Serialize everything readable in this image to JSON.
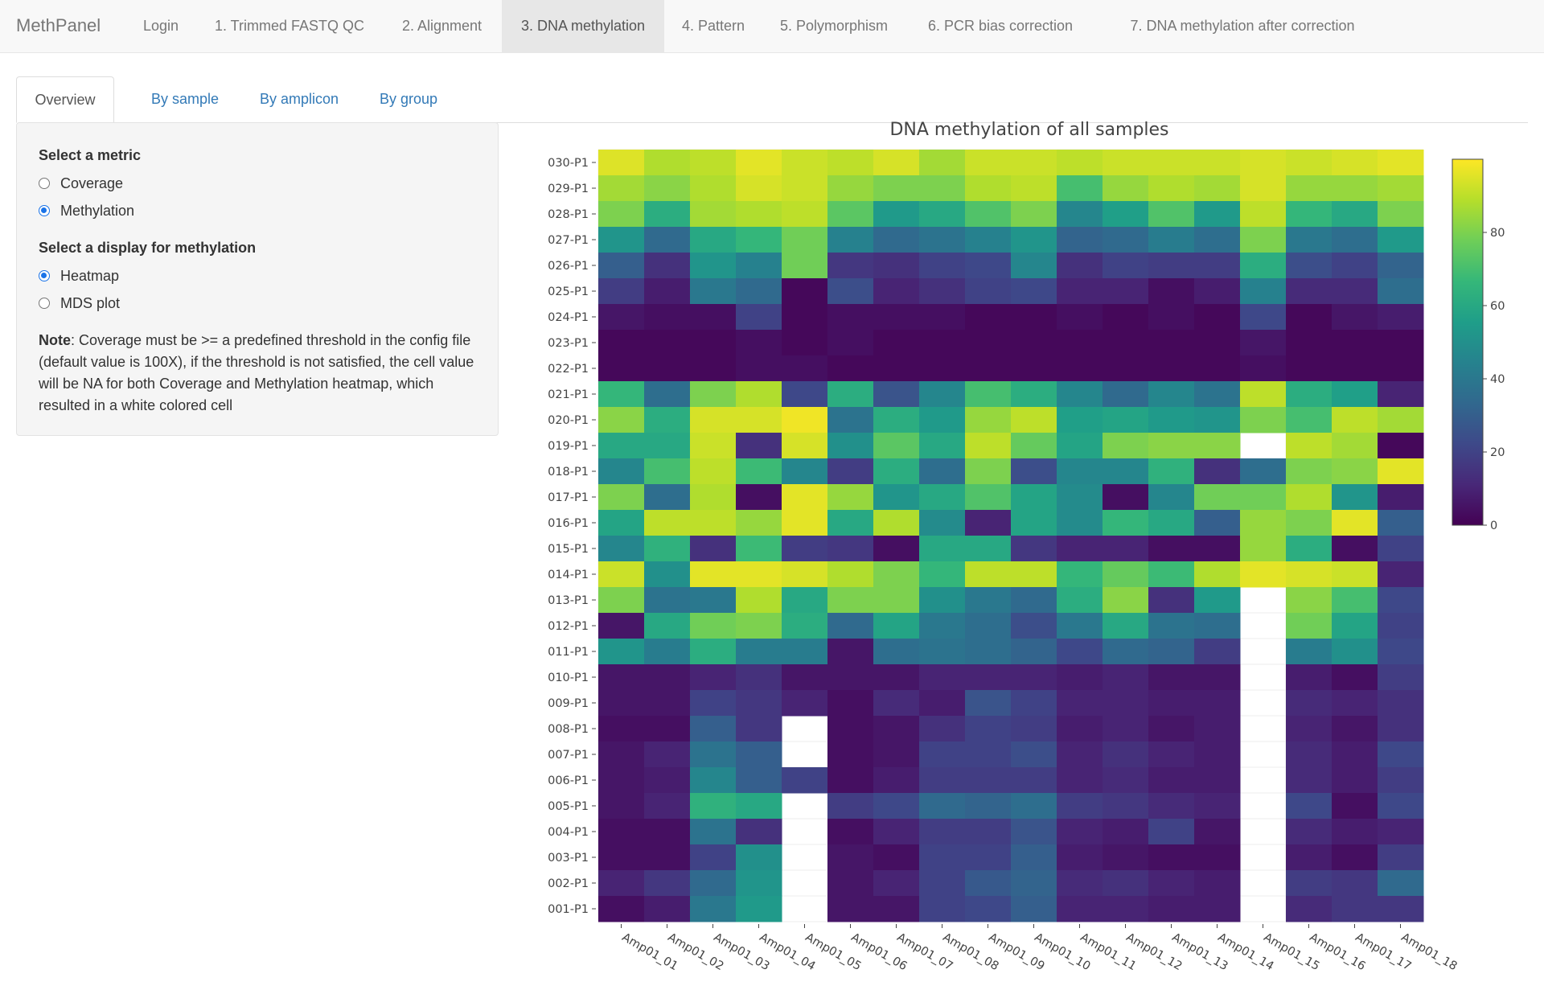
{
  "navbar": {
    "brand": "MethPanel",
    "items": [
      {
        "label": "Login",
        "active": false
      },
      {
        "label": "1. Trimmed FASTQ QC",
        "active": false
      },
      {
        "label": "2. Alignment",
        "active": false
      },
      {
        "label": "3. DNA methylation",
        "active": true
      },
      {
        "label": "4. Pattern",
        "active": false
      },
      {
        "label": "5. Polymorphism",
        "active": false
      },
      {
        "label": "6. PCR bias correction",
        "active": false
      },
      {
        "label": "7. DNA methylation after correction",
        "active": false
      }
    ]
  },
  "tabs": [
    {
      "label": "Overview",
      "active": true
    },
    {
      "label": "By sample",
      "active": false
    },
    {
      "label": "By amplicon",
      "active": false
    },
    {
      "label": "By group",
      "active": false
    }
  ],
  "sidebar": {
    "metric_label": "Select a metric",
    "metric_options": [
      {
        "label": "Coverage",
        "checked": false
      },
      {
        "label": "Methylation",
        "checked": true
      }
    ],
    "display_label": "Select a display for methylation",
    "display_options": [
      {
        "label": "Heatmap",
        "checked": true
      },
      {
        "label": "MDS plot",
        "checked": false
      }
    ],
    "note_bold": "Note",
    "note_text": ": Coverage must be >= a predefined threshold in the config file (default value is 100X), if the threshold is not satisfied, the cell value will be NA for both Coverage and Methylation heatmap, which resulted in a white colored cell"
  },
  "chart_data": {
    "type": "heatmap",
    "title": "DNA methylation of all samples",
    "x": [
      "Amp01_01",
      "Amp01_02",
      "Amp01_03",
      "Amp01_04",
      "Amp01_05",
      "Amp01_06",
      "Amp01_07",
      "Amp01_08",
      "Amp01_09",
      "Amp01_10",
      "Amp01_11",
      "Amp01_12",
      "Amp01_13",
      "Amp01_14",
      "Amp01_15",
      "Amp01_16",
      "Amp01_17",
      "Amp01_18"
    ],
    "y": [
      "030-P1",
      "029-P1",
      "028-P1",
      "027-P1",
      "026-P1",
      "025-P1",
      "024-P1",
      "023-P1",
      "022-P1",
      "021-P1",
      "020-P1",
      "019-P1",
      "018-P1",
      "017-P1",
      "016-P1",
      "015-P1",
      "014-P1",
      "013-P1",
      "012-P1",
      "011-P1",
      "010-P1",
      "009-P1",
      "008-P1",
      "007-P1",
      "006-P1",
      "005-P1",
      "004-P1",
      "003-P1",
      "002-P1",
      "001-P1"
    ],
    "z": [
      [
        95,
        88,
        90,
        96,
        92,
        90,
        94,
        86,
        92,
        92,
        90,
        92,
        92,
        92,
        94,
        92,
        94,
        96
      ],
      [
        86,
        82,
        88,
        94,
        92,
        84,
        80,
        80,
        88,
        90,
        70,
        84,
        88,
        86,
        94,
        84,
        84,
        86
      ],
      [
        80,
        62,
        86,
        88,
        90,
        74,
        54,
        60,
        72,
        80,
        46,
        56,
        72,
        54,
        90,
        66,
        60,
        80
      ],
      [
        52,
        34,
        60,
        66,
        78,
        44,
        34,
        38,
        44,
        52,
        32,
        34,
        42,
        36,
        80,
        40,
        36,
        54
      ],
      [
        30,
        14,
        52,
        44,
        78,
        16,
        14,
        20,
        22,
        46,
        14,
        20,
        18,
        18,
        62,
        24,
        20,
        32
      ],
      [
        18,
        8,
        40,
        34,
        2,
        24,
        10,
        14,
        20,
        22,
        10,
        10,
        4,
        8,
        44,
        12,
        12,
        36
      ],
      [
        6,
        4,
        4,
        20,
        2,
        4,
        4,
        4,
        2,
        2,
        4,
        2,
        4,
        2,
        22,
        2,
        6,
        8
      ],
      [
        2,
        2,
        2,
        4,
        2,
        4,
        2,
        2,
        2,
        2,
        2,
        2,
        2,
        2,
        6,
        2,
        2,
        2
      ],
      [
        2,
        2,
        2,
        4,
        4,
        2,
        2,
        2,
        2,
        2,
        2,
        2,
        2,
        2,
        4,
        2,
        2,
        2
      ],
      [
        66,
        36,
        80,
        88,
        22,
        62,
        26,
        46,
        70,
        62,
        46,
        34,
        46,
        38,
        90,
        62,
        56,
        10
      ],
      [
        82,
        62,
        94,
        94,
        98,
        38,
        62,
        54,
        84,
        90,
        56,
        58,
        54,
        52,
        80,
        70,
        90,
        86
      ],
      [
        60,
        60,
        92,
        14,
        94,
        50,
        74,
        60,
        90,
        76,
        58,
        80,
        82,
        82,
        null,
        90,
        86,
        2
      ],
      [
        46,
        70,
        90,
        68,
        46,
        18,
        62,
        36,
        80,
        24,
        46,
        46,
        64,
        14,
        36,
        80,
        82,
        96
      ],
      [
        80,
        36,
        88,
        4,
        96,
        84,
        52,
        60,
        72,
        58,
        48,
        4,
        46,
        78,
        78,
        88,
        52,
        8
      ],
      [
        58,
        90,
        90,
        84,
        96,
        60,
        88,
        48,
        10,
        58,
        48,
        66,
        60,
        30,
        84,
        80,
        96,
        30
      ],
      [
        46,
        64,
        14,
        68,
        18,
        16,
        4,
        60,
        60,
        16,
        10,
        10,
        4,
        4,
        84,
        62,
        4,
        20
      ],
      [
        92,
        50,
        96,
        96,
        94,
        88,
        80,
        66,
        90,
        90,
        66,
        76,
        68,
        88,
        96,
        94,
        92,
        10
      ],
      [
        80,
        38,
        40,
        88,
        60,
        80,
        80,
        50,
        40,
        34,
        62,
        82,
        14,
        54,
        null,
        82,
        70,
        22
      ],
      [
        6,
        60,
        78,
        80,
        62,
        34,
        58,
        40,
        36,
        24,
        40,
        60,
        38,
        36,
        null,
        78,
        58,
        20
      ],
      [
        52,
        42,
        62,
        42,
        42,
        6,
        36,
        38,
        36,
        32,
        22,
        34,
        32,
        18,
        null,
        42,
        50,
        22
      ],
      [
        6,
        6,
        10,
        14,
        6,
        6,
        6,
        10,
        10,
        10,
        8,
        10,
        6,
        6,
        null,
        8,
        4,
        18
      ],
      [
        6,
        6,
        20,
        16,
        10,
        4,
        12,
        8,
        26,
        20,
        10,
        10,
        8,
        8,
        null,
        12,
        10,
        14
      ],
      [
        4,
        4,
        30,
        16,
        null,
        4,
        6,
        14,
        20,
        18,
        8,
        10,
        6,
        8,
        null,
        10,
        6,
        14
      ],
      [
        6,
        10,
        38,
        30,
        null,
        4,
        6,
        20,
        20,
        24,
        10,
        14,
        10,
        8,
        null,
        12,
        8,
        22
      ],
      [
        6,
        8,
        46,
        30,
        20,
        4,
        8,
        18,
        18,
        18,
        10,
        12,
        8,
        8,
        null,
        12,
        8,
        18
      ],
      [
        6,
        10,
        64,
        60,
        null,
        18,
        22,
        34,
        32,
        36,
        18,
        16,
        12,
        10,
        null,
        22,
        4,
        22
      ],
      [
        4,
        4,
        38,
        14,
        null,
        4,
        10,
        18,
        18,
        26,
        10,
        8,
        20,
        6,
        null,
        12,
        8,
        10
      ],
      [
        4,
        4,
        20,
        50,
        null,
        6,
        4,
        20,
        20,
        30,
        8,
        6,
        4,
        4,
        null,
        8,
        4,
        18
      ],
      [
        10,
        16,
        34,
        52,
        null,
        6,
        10,
        20,
        28,
        32,
        12,
        14,
        10,
        8,
        null,
        18,
        16,
        34
      ],
      [
        4,
        8,
        40,
        54,
        null,
        6,
        6,
        20,
        22,
        30,
        10,
        10,
        8,
        8,
        null,
        12,
        16,
        16
      ]
    ],
    "zmin": 0,
    "zmax": 100,
    "colorscale": "viridis",
    "colorbar_ticks": [
      "0",
      "20",
      "40",
      "60",
      "80"
    ],
    "na_color": "#ffffff"
  }
}
